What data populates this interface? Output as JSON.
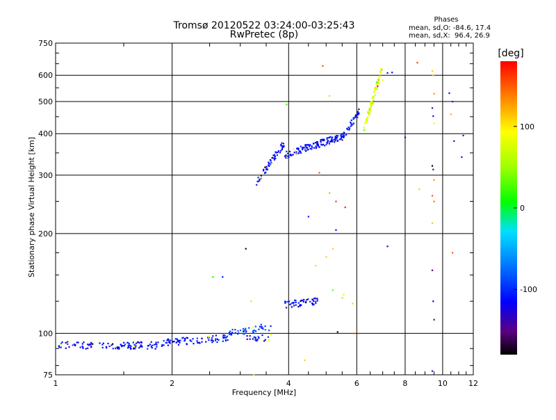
{
  "chart_data": {
    "type": "scatter",
    "title": "Tromsø 20120522 03:24:00-03:25:43",
    "subtitle": "RwPretec (8p)",
    "xlabel": "Frequency [MHz]",
    "ylabel": "Stationary phase Virtual Height [km]",
    "x_scale": "log",
    "y_scale": "log",
    "xlim": [
      1,
      12
    ],
    "ylim": [
      75,
      750
    ],
    "x_ticks": [
      1,
      2,
      4,
      6,
      8,
      10,
      12
    ],
    "y_ticks": [
      75,
      100,
      200,
      300,
      400,
      500,
      600,
      750
    ],
    "grid": true,
    "stats": {
      "heading": "Phases",
      "line1": "mean, sd,O: -84.6, 17.4",
      "line2": "mean, sd,X:  96.4, 26.9"
    },
    "colorbar": {
      "label": "[deg]",
      "range": [
        -180,
        180
      ],
      "ticks": [
        100,
        0,
        -100
      ]
    },
    "traces": [
      {
        "x_range": [
          1.0,
          1.9
        ],
        "y_start": 92,
        "y_end": 92,
        "phase": -110,
        "count": 110
      },
      {
        "x_range": [
          1.9,
          2.8
        ],
        "y_start": 94,
        "y_end": 97,
        "phase": -110,
        "count": 80
      },
      {
        "x_range": [
          2.8,
          3.6
        ],
        "y_start": 100,
        "y_end": 105,
        "phase": -95,
        "count": 45
      },
      {
        "x_range": [
          3.1,
          3.6
        ],
        "y_start": 96,
        "y_end": 97,
        "phase": -110,
        "count": 20
      },
      {
        "x_range": [
          3.9,
          4.75
        ],
        "y_start": 122,
        "y_end": 125,
        "phase": -110,
        "count": 55
      },
      {
        "x_range": [
          3.3,
          3.9
        ],
        "y_start": 285,
        "y_end": 375,
        "phase": -110,
        "count": 60
      },
      {
        "x_range": [
          3.9,
          5.6
        ],
        "y_start": 345,
        "y_end": 395,
        "phase": -110,
        "count": 150
      },
      {
        "x_range": [
          5.6,
          6.1
        ],
        "y_start": 400,
        "y_end": 470,
        "phase": -105,
        "count": 30
      },
      {
        "x_range": [
          6.2,
          7.0
        ],
        "y_start": 400,
        "y_end": 640,
        "phase": 80,
        "count": 80
      }
    ],
    "scatter_points": [
      {
        "x": 3.95,
        "y": 490,
        "phase": 20
      },
      {
        "x": 4.9,
        "y": 640,
        "phase": 150
      },
      {
        "x": 5.1,
        "y": 520,
        "phase": 110
      },
      {
        "x": 4.8,
        "y": 305,
        "phase": 150
      },
      {
        "x": 5.1,
        "y": 265,
        "phase": 120
      },
      {
        "x": 5.3,
        "y": 250,
        "phase": 160
      },
      {
        "x": 5.6,
        "y": 240,
        "phase": 170
      },
      {
        "x": 4.5,
        "y": 225,
        "phase": -110
      },
      {
        "x": 5.3,
        "y": 205,
        "phase": -110
      },
      {
        "x": 3.1,
        "y": 180,
        "phase": -170
      },
      {
        "x": 5.2,
        "y": 180,
        "phase": 110
      },
      {
        "x": 7.2,
        "y": 183,
        "phase": -110
      },
      {
        "x": 4.7,
        "y": 160,
        "phase": 110
      },
      {
        "x": 5.0,
        "y": 170,
        "phase": 110
      },
      {
        "x": 5.2,
        "y": 135,
        "phase": 30
      },
      {
        "x": 5.5,
        "y": 128,
        "phase": 110
      },
      {
        "x": 5.55,
        "y": 131,
        "phase": 80
      },
      {
        "x": 5.85,
        "y": 123,
        "phase": 110
      },
      {
        "x": 2.55,
        "y": 148,
        "phase": 10
      },
      {
        "x": 2.7,
        "y": 148,
        "phase": -110
      },
      {
        "x": 5.35,
        "y": 101,
        "phase": -180
      },
      {
        "x": 5.9,
        "y": 100,
        "phase": 150
      },
      {
        "x": 4.4,
        "y": 83,
        "phase": 110
      },
      {
        "x": 3.2,
        "y": 125,
        "phase": 60
      },
      {
        "x": 3.25,
        "y": 75,
        "phase": 60
      },
      {
        "x": 8.6,
        "y": 655,
        "phase": 160
      },
      {
        "x": 9.4,
        "y": 618,
        "phase": 110
      },
      {
        "x": 9.45,
        "y": 600,
        "phase": 110
      },
      {
        "x": 9.5,
        "y": 528,
        "phase": 130
      },
      {
        "x": 9.4,
        "y": 478,
        "phase": -140
      },
      {
        "x": 9.45,
        "y": 452,
        "phase": -110
      },
      {
        "x": 9.5,
        "y": 430,
        "phase": 100
      },
      {
        "x": 9.4,
        "y": 320,
        "phase": -180
      },
      {
        "x": 9.45,
        "y": 312,
        "phase": -140
      },
      {
        "x": 9.5,
        "y": 290,
        "phase": 130
      },
      {
        "x": 9.4,
        "y": 260,
        "phase": 150
      },
      {
        "x": 9.5,
        "y": 250,
        "phase": 140
      },
      {
        "x": 9.4,
        "y": 215,
        "phase": 110
      },
      {
        "x": 8.7,
        "y": 272,
        "phase": 110
      },
      {
        "x": 9.4,
        "y": 155,
        "phase": -150
      },
      {
        "x": 9.45,
        "y": 125,
        "phase": -120
      },
      {
        "x": 9.5,
        "y": 110,
        "phase": -150
      },
      {
        "x": 9.4,
        "y": 77,
        "phase": -110
      },
      {
        "x": 10.4,
        "y": 530,
        "phase": -110
      },
      {
        "x": 10.6,
        "y": 500,
        "phase": -110
      },
      {
        "x": 10.5,
        "y": 458,
        "phase": 120
      },
      {
        "x": 10.7,
        "y": 380,
        "phase": -110
      },
      {
        "x": 11.3,
        "y": 395,
        "phase": -130
      },
      {
        "x": 11.2,
        "y": 340,
        "phase": -110
      },
      {
        "x": 10.6,
        "y": 175,
        "phase": 150
      },
      {
        "x": 8.0,
        "y": 390,
        "phase": -110
      },
      {
        "x": 7.0,
        "y": 580,
        "phase": 80
      },
      {
        "x": 7.2,
        "y": 610,
        "phase": -110
      },
      {
        "x": 7.4,
        "y": 612,
        "phase": -110
      }
    ]
  }
}
